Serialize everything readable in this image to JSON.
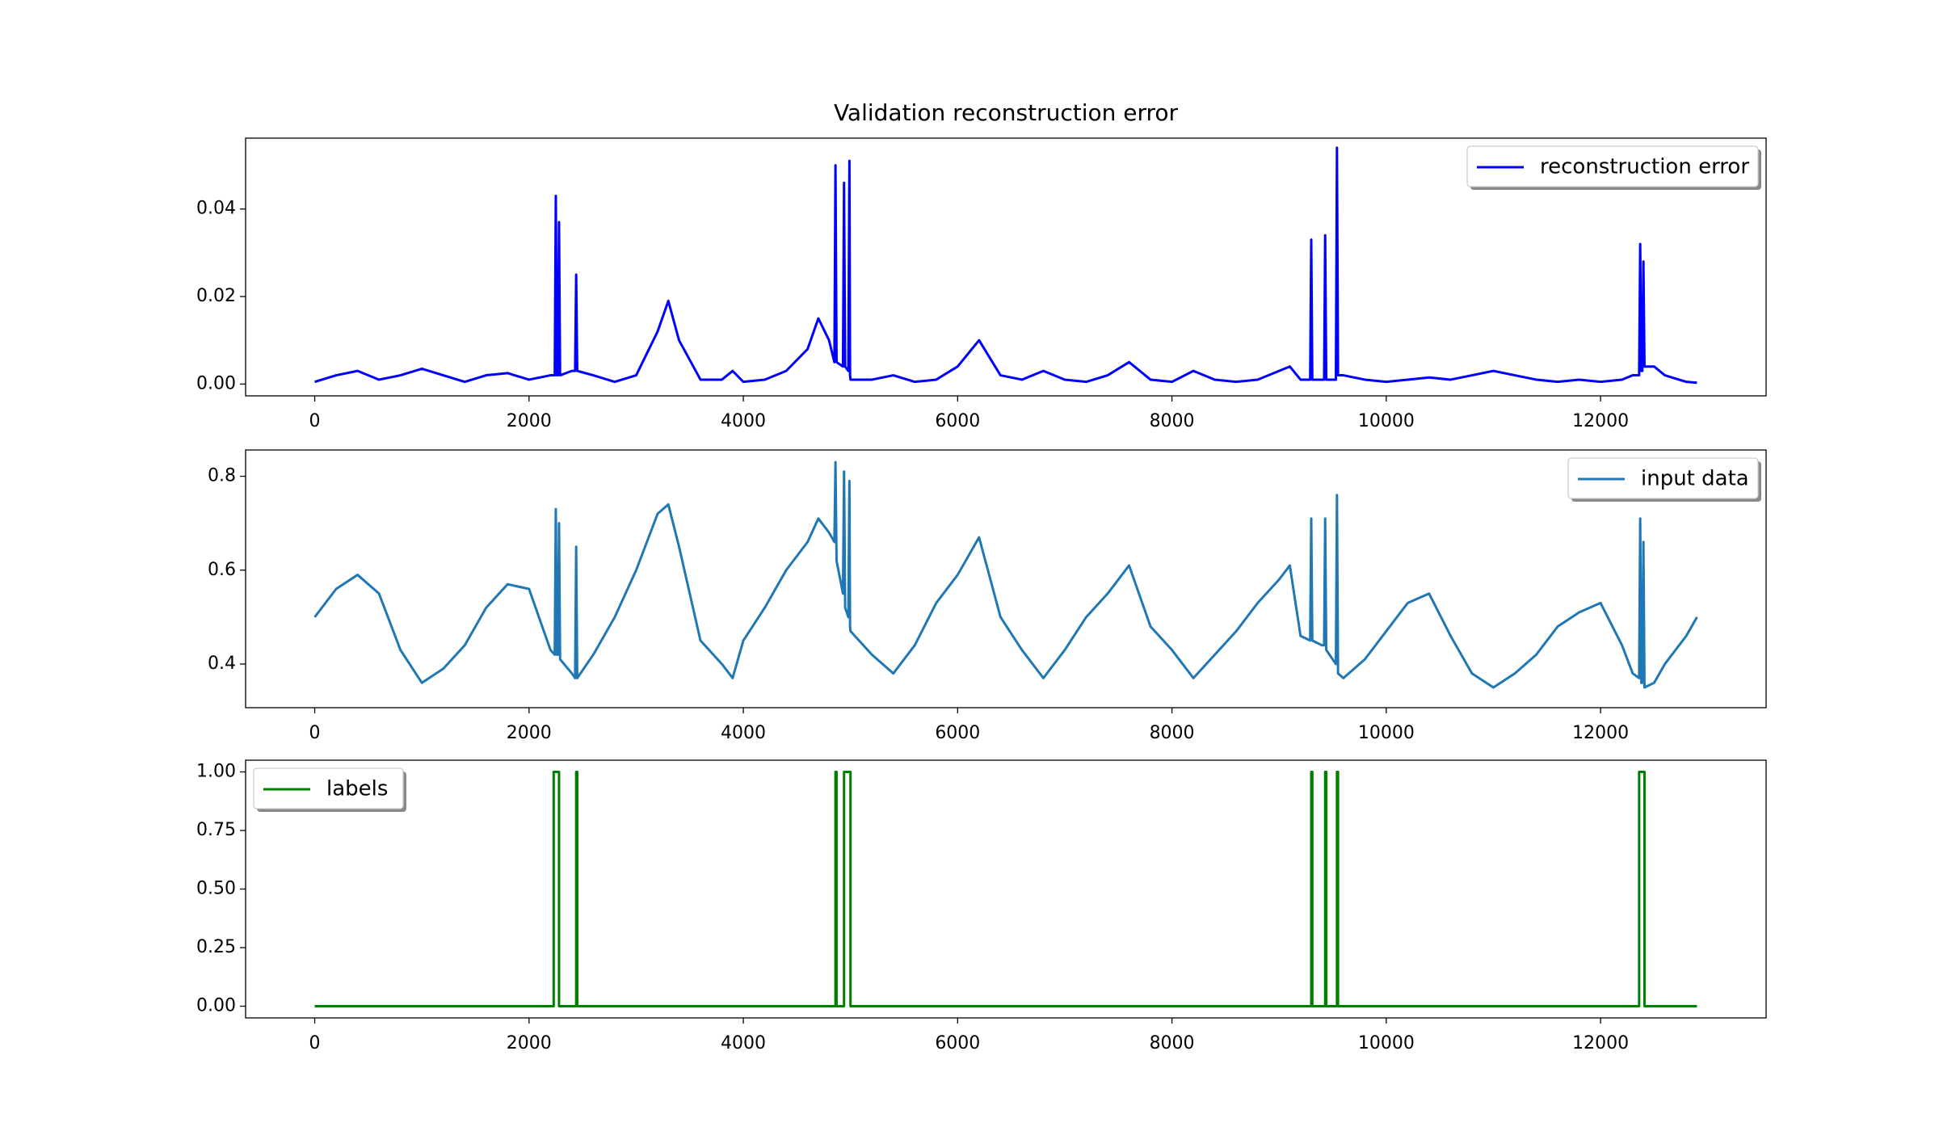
{
  "chart_data": [
    {
      "type": "line",
      "title": "Validation reconstruction error",
      "x": [
        0,
        200,
        400,
        600,
        800,
        1000,
        1200,
        1400,
        1600,
        1800,
        2000,
        2200,
        2240,
        2250,
        2260,
        2270,
        2280,
        2290,
        2400,
        2430,
        2440,
        2450,
        2600,
        2800,
        3000,
        3200,
        3300,
        3400,
        3600,
        3800,
        3900,
        4000,
        4200,
        4400,
        4600,
        4700,
        4800,
        4850,
        4860,
        4870,
        4930,
        4940,
        4950,
        4980,
        4990,
        4996,
        5000,
        5200,
        5400,
        5600,
        5800,
        6000,
        6200,
        6400,
        6600,
        6800,
        7000,
        7200,
        7400,
        7600,
        7800,
        8000,
        8200,
        8400,
        8600,
        8800,
        9000,
        9100,
        9200,
        9290,
        9300,
        9310,
        9400,
        9420,
        9430,
        9440,
        9530,
        9540,
        9550,
        9600,
        9800,
        10000,
        10200,
        10400,
        10600,
        10800,
        11000,
        11200,
        11400,
        11600,
        11800,
        12000,
        12200,
        12300,
        12360,
        12370,
        12380,
        12390,
        12400,
        12410,
        12500,
        12600,
        12800,
        12900
      ],
      "series": [
        {
          "name": "reconstruction error",
          "color": "#0000ff",
          "values": [
            0.0005,
            0.002,
            0.003,
            0.001,
            0.002,
            0.0035,
            0.002,
            0.0005,
            0.002,
            0.0025,
            0.001,
            0.002,
            0.002,
            0.043,
            0.002,
            0.002,
            0.037,
            0.002,
            0.003,
            0.003,
            0.025,
            0.003,
            0.002,
            0.0005,
            0.002,
            0.012,
            0.019,
            0.01,
            0.001,
            0.001,
            0.003,
            0.0005,
            0.001,
            0.003,
            0.008,
            0.015,
            0.01,
            0.005,
            0.05,
            0.005,
            0.004,
            0.046,
            0.004,
            0.003,
            0.051,
            0.002,
            0.001,
            0.001,
            0.002,
            0.0005,
            0.001,
            0.004,
            0.01,
            0.002,
            0.001,
            0.003,
            0.001,
            0.0005,
            0.002,
            0.005,
            0.001,
            0.0005,
            0.003,
            0.001,
            0.0005,
            0.001,
            0.003,
            0.004,
            0.001,
            0.001,
            0.033,
            0.001,
            0.001,
            0.001,
            0.034,
            0.001,
            0.001,
            0.054,
            0.002,
            0.002,
            0.001,
            0.0005,
            0.001,
            0.0015,
            0.001,
            0.002,
            0.003,
            0.002,
            0.001,
            0.0005,
            0.001,
            0.0005,
            0.001,
            0.002,
            0.002,
            0.032,
            0.003,
            0.003,
            0.028,
            0.004,
            0.004,
            0.002,
            0.0005,
            0.0003
          ]
        }
      ],
      "xlim": [
        -645,
        13545
      ],
      "xticks": [
        0,
        2000,
        4000,
        6000,
        8000,
        10000,
        12000
      ],
      "ylim": [
        -0.0027,
        0.0562
      ],
      "yticks": [
        {
          "value": 0,
          "label": "0.00"
        },
        0.02,
        0.04
      ],
      "legend": "upper right"
    },
    {
      "type": "line",
      "x": [
        0,
        200,
        400,
        600,
        800,
        1000,
        1200,
        1400,
        1600,
        1800,
        2000,
        2200,
        2240,
        2250,
        2260,
        2270,
        2280,
        2290,
        2400,
        2430,
        2440,
        2450,
        2600,
        2800,
        3000,
        3200,
        3300,
        3400,
        3600,
        3800,
        3900,
        4000,
        4200,
        4400,
        4600,
        4700,
        4800,
        4850,
        4860,
        4870,
        4930,
        4940,
        4950,
        4980,
        4990,
        4996,
        5000,
        5200,
        5400,
        5600,
        5800,
        6000,
        6200,
        6400,
        6600,
        6800,
        7000,
        7200,
        7400,
        7600,
        7800,
        8000,
        8200,
        8400,
        8600,
        8800,
        9000,
        9100,
        9200,
        9290,
        9300,
        9310,
        9400,
        9420,
        9430,
        9440,
        9530,
        9540,
        9550,
        9600,
        9800,
        10000,
        10200,
        10400,
        10600,
        10800,
        11000,
        11200,
        11400,
        11600,
        11800,
        12000,
        12200,
        12300,
        12360,
        12370,
        12380,
        12390,
        12400,
        12410,
        12500,
        12600,
        12800,
        12900
      ],
      "series": [
        {
          "name": "input data",
          "color": "#1f77b4",
          "values": [
            0.5,
            0.56,
            0.59,
            0.55,
            0.43,
            0.36,
            0.39,
            0.44,
            0.52,
            0.57,
            0.56,
            0.43,
            0.42,
            0.73,
            0.42,
            0.42,
            0.7,
            0.41,
            0.38,
            0.37,
            0.65,
            0.37,
            0.42,
            0.5,
            0.6,
            0.72,
            0.74,
            0.65,
            0.45,
            0.4,
            0.37,
            0.45,
            0.52,
            0.6,
            0.66,
            0.71,
            0.68,
            0.66,
            0.83,
            0.62,
            0.55,
            0.81,
            0.52,
            0.5,
            0.79,
            0.48,
            0.47,
            0.42,
            0.38,
            0.44,
            0.53,
            0.59,
            0.67,
            0.5,
            0.43,
            0.37,
            0.43,
            0.5,
            0.55,
            0.61,
            0.48,
            0.43,
            0.37,
            0.42,
            0.47,
            0.53,
            0.58,
            0.61,
            0.46,
            0.45,
            0.71,
            0.45,
            0.44,
            0.44,
            0.71,
            0.43,
            0.4,
            0.76,
            0.38,
            0.37,
            0.41,
            0.47,
            0.53,
            0.55,
            0.46,
            0.38,
            0.35,
            0.38,
            0.42,
            0.48,
            0.51,
            0.53,
            0.44,
            0.38,
            0.37,
            0.71,
            0.36,
            0.36,
            0.66,
            0.35,
            0.36,
            0.4,
            0.46,
            0.5
          ]
        }
      ],
      "xlim": [
        -645,
        13545
      ],
      "xticks": [
        0,
        2000,
        4000,
        6000,
        8000,
        10000,
        12000
      ],
      "ylim": [
        0.307,
        0.856
      ],
      "yticks": [
        0.4,
        0.6,
        0.8
      ],
      "legend": "upper right"
    },
    {
      "type": "line",
      "x": [
        0,
        2230,
        2230,
        2280,
        2280,
        2440,
        2440,
        2450,
        2450,
        4860,
        4860,
        4870,
        4870,
        4940,
        4940,
        5000,
        5000,
        9300,
        9300,
        9310,
        9310,
        9430,
        9430,
        9440,
        9440,
        9540,
        9540,
        9550,
        9550,
        12360,
        12360,
        12410,
        12410,
        12900
      ],
      "series": [
        {
          "name": "labels",
          "color": "#008000",
          "values": [
            0,
            0,
            1,
            1,
            0,
            0,
            1,
            1,
            0,
            0,
            1,
            1,
            0,
            0,
            1,
            1,
            0,
            0,
            1,
            1,
            0,
            0,
            1,
            1,
            0,
            0,
            1,
            1,
            0,
            0,
            1,
            1,
            0,
            0
          ]
        }
      ],
      "xlim": [
        -645,
        13545
      ],
      "xticks": [
        0,
        2000,
        4000,
        6000,
        8000,
        10000,
        12000
      ],
      "ylim": [
        -0.05,
        1.05
      ],
      "yticks": [
        {
          "value": 0,
          "label": "0.00"
        },
        0.25,
        {
          "value": 0.5,
          "label": "0.50"
        },
        0.75,
        {
          "value": 1,
          "label": "1.00"
        }
      ],
      "legend": "upper left"
    }
  ]
}
